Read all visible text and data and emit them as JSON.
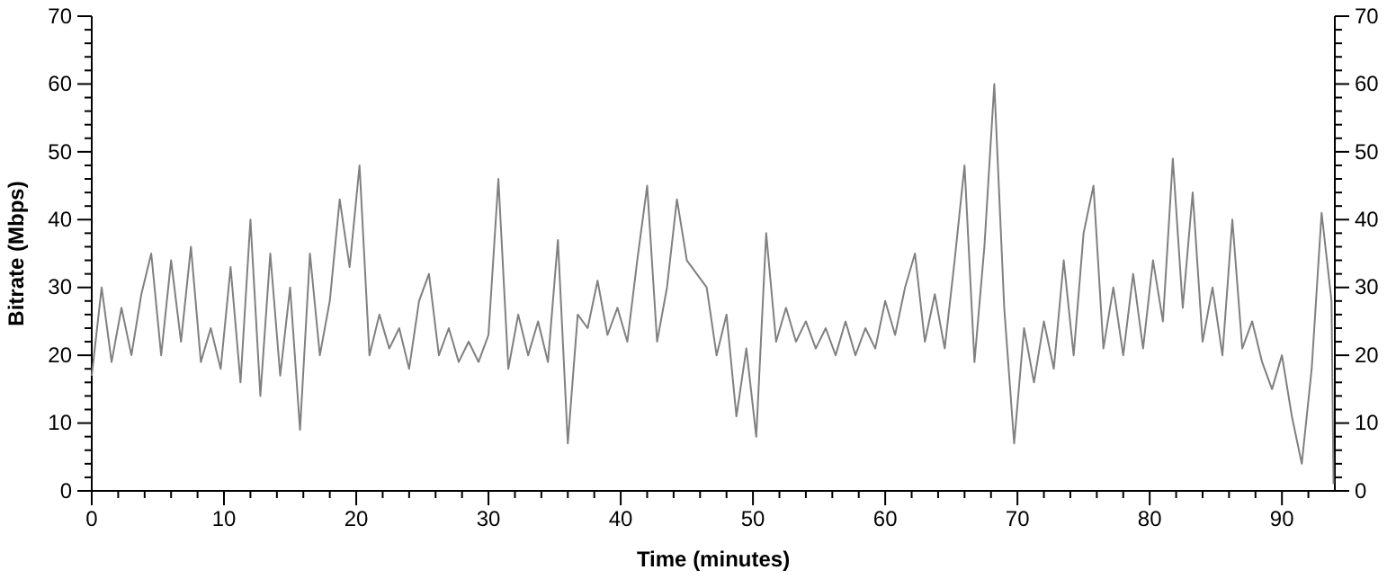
{
  "chart_data": {
    "type": "line",
    "xlabel": "Time (minutes)",
    "ylabel": "Bitrate (Mbps)",
    "xlim": [
      0,
      94
    ],
    "ylim": [
      0,
      70
    ],
    "y2lim": [
      0,
      70
    ],
    "xticks": [
      0,
      {
        "value": 2,
        "label": null
      },
      {
        "value": 4,
        "label": null
      },
      {
        "value": 6,
        "label": null
      },
      {
        "value": 8,
        "label": null
      },
      10,
      {
        "value": 12,
        "label": null
      },
      {
        "value": 14,
        "label": null
      },
      {
        "value": 16,
        "label": null
      },
      {
        "value": 18,
        "label": null
      },
      20,
      {
        "value": 22,
        "label": null
      },
      {
        "value": 24,
        "label": null
      },
      {
        "value": 26,
        "label": null
      },
      {
        "value": 28,
        "label": null
      },
      30,
      {
        "value": 32,
        "label": null
      },
      {
        "value": 34,
        "label": null
      },
      {
        "value": 36,
        "label": null
      },
      {
        "value": 38,
        "label": null
      },
      40,
      {
        "value": 42,
        "label": null
      },
      {
        "value": 44,
        "label": null
      },
      {
        "value": 46,
        "label": null
      },
      {
        "value": 48,
        "label": null
      },
      50,
      {
        "value": 52,
        "label": null
      },
      {
        "value": 54,
        "label": null
      },
      {
        "value": 56,
        "label": null
      },
      {
        "value": 58,
        "label": null
      },
      60,
      {
        "value": 62,
        "label": null
      },
      {
        "value": 64,
        "label": null
      },
      {
        "value": 66,
        "label": null
      },
      {
        "value": 68,
        "label": null
      },
      70,
      {
        "value": 72,
        "label": null
      },
      {
        "value": 74,
        "label": null
      },
      {
        "value": 76,
        "label": null
      },
      {
        "value": 78,
        "label": null
      },
      80,
      {
        "value": 82,
        "label": null
      },
      {
        "value": 84,
        "label": null
      },
      {
        "value": 86,
        "label": null
      },
      {
        "value": 88,
        "label": null
      },
      90,
      {
        "value": 92,
        "label": null
      }
    ],
    "yticks": [
      0,
      {
        "value": 2,
        "label": null
      },
      {
        "value": 4,
        "label": null
      },
      {
        "value": 6,
        "label": null
      },
      {
        "value": 8,
        "label": null
      },
      10,
      {
        "value": 12,
        "label": null
      },
      {
        "value": 14,
        "label": null
      },
      {
        "value": 16,
        "label": null
      },
      {
        "value": 18,
        "label": null
      },
      20,
      {
        "value": 22,
        "label": null
      },
      {
        "value": 24,
        "label": null
      },
      {
        "value": 26,
        "label": null
      },
      {
        "value": 28,
        "label": null
      },
      30,
      {
        "value": 32,
        "label": null
      },
      {
        "value": 34,
        "label": null
      },
      {
        "value": 36,
        "label": null
      },
      {
        "value": 38,
        "label": null
      },
      40,
      {
        "value": 42,
        "label": null
      },
      {
        "value": 44,
        "label": null
      },
      {
        "value": 46,
        "label": null
      },
      {
        "value": 48,
        "label": null
      },
      50,
      {
        "value": 52,
        "label": null
      },
      {
        "value": 54,
        "label": null
      },
      {
        "value": 56,
        "label": null
      },
      {
        "value": 58,
        "label": null
      },
      60,
      {
        "value": 62,
        "label": null
      },
      {
        "value": 64,
        "label": null
      },
      {
        "value": 66,
        "label": null
      },
      {
        "value": 68,
        "label": null
      },
      70
    ],
    "y2ticks": [
      0,
      {
        "value": 2,
        "label": null
      },
      {
        "value": 4,
        "label": null
      },
      {
        "value": 6,
        "label": null
      },
      {
        "value": 8,
        "label": null
      },
      10,
      {
        "value": 12,
        "label": null
      },
      {
        "value": 14,
        "label": null
      },
      {
        "value": 16,
        "label": null
      },
      {
        "value": 18,
        "label": null
      },
      20,
      {
        "value": 22,
        "label": null
      },
      {
        "value": 24,
        "label": null
      },
      {
        "value": 26,
        "label": null
      },
      {
        "value": 28,
        "label": null
      },
      30,
      {
        "value": 32,
        "label": null
      },
      {
        "value": 34,
        "label": null
      },
      {
        "value": 36,
        "label": null
      },
      {
        "value": 38,
        "label": null
      },
      40,
      {
        "value": 42,
        "label": null
      },
      {
        "value": 44,
        "label": null
      },
      {
        "value": 46,
        "label": null
      },
      {
        "value": 48,
        "label": null
      },
      50,
      {
        "value": 52,
        "label": null
      },
      {
        "value": 54,
        "label": null
      },
      {
        "value": 56,
        "label": null
      },
      {
        "value": 58,
        "label": null
      },
      60,
      {
        "value": 62,
        "label": null
      },
      {
        "value": 64,
        "label": null
      },
      {
        "value": 66,
        "label": null
      },
      {
        "value": 68,
        "label": null
      },
      70
    ],
    "marker": "none",
    "line_style": "solid",
    "series": [
      {
        "color": "#808080",
        "x": [
          0,
          0.75,
          1.5,
          2.25,
          3,
          3.75,
          4.5,
          5.25,
          6,
          6.75,
          7.5,
          8.25,
          9,
          9.75,
          10.5,
          11.25,
          12,
          12.75,
          13.5,
          14.25,
          15,
          15.75,
          16.5,
          17.25,
          18,
          18.75,
          19.5,
          20.25,
          21,
          21.75,
          22.5,
          23.25,
          24,
          24.75,
          25.5,
          26.25,
          27,
          27.75,
          28.5,
          29.25,
          30,
          30.75,
          31.5,
          32.25,
          33,
          33.75,
          34.5,
          35.25,
          36,
          36.75,
          37.5,
          38.25,
          39,
          39.75,
          40.5,
          41.25,
          42,
          42.75,
          43.5,
          44.25,
          45,
          45.75,
          46.5,
          47.25,
          48,
          48.75,
          49.5,
          50.25,
          51,
          51.75,
          52.5,
          53.25,
          54,
          54.75,
          55.5,
          56.25,
          57,
          57.75,
          58.5,
          59.25,
          60,
          60.75,
          61.5,
          62.25,
          63,
          63.75,
          64.5,
          65.25,
          66,
          66.75,
          67.5,
          68.25,
          69,
          69.75,
          70.5,
          71.25,
          72,
          72.75,
          73.5,
          74.25,
          75,
          75.75,
          76.5,
          77.25,
          78,
          78.75,
          79.5,
          80.25,
          81,
          81.75,
          82.5,
          83.25,
          84,
          84.75,
          85.5,
          86.25,
          87,
          87.75,
          88.5,
          89.25,
          90,
          90.75,
          91.5,
          92.25,
          93,
          93.75,
          93.9
        ],
        "values": [
          17,
          30,
          19,
          27,
          20,
          29,
          35,
          20,
          34,
          22,
          36,
          19,
          24,
          18,
          33,
          16,
          40,
          14,
          35,
          17,
          30,
          9,
          35,
          20,
          28,
          43,
          33,
          48,
          20,
          26,
          21,
          24,
          18,
          28,
          32,
          20,
          24,
          19,
          22,
          19,
          23,
          46,
          18,
          26,
          20,
          25,
          19,
          37,
          7,
          26,
          24,
          31,
          23,
          27,
          22,
          34,
          45,
          22,
          30,
          43,
          34,
          32,
          30,
          20,
          26,
          11,
          21,
          8,
          38,
          22,
          27,
          22,
          25,
          21,
          24,
          20,
          25,
          20,
          24,
          21,
          28,
          23,
          30,
          35,
          22,
          29,
          21,
          34,
          48,
          19,
          36,
          60,
          27,
          7,
          24,
          16,
          25,
          18,
          34,
          20,
          38,
          45,
          21,
          30,
          20,
          32,
          21,
          34,
          25,
          49,
          27,
          44,
          22,
          30,
          20,
          40,
          21,
          25,
          19,
          15,
          20,
          11,
          4,
          18,
          41,
          28,
          1
        ]
      }
    ]
  }
}
